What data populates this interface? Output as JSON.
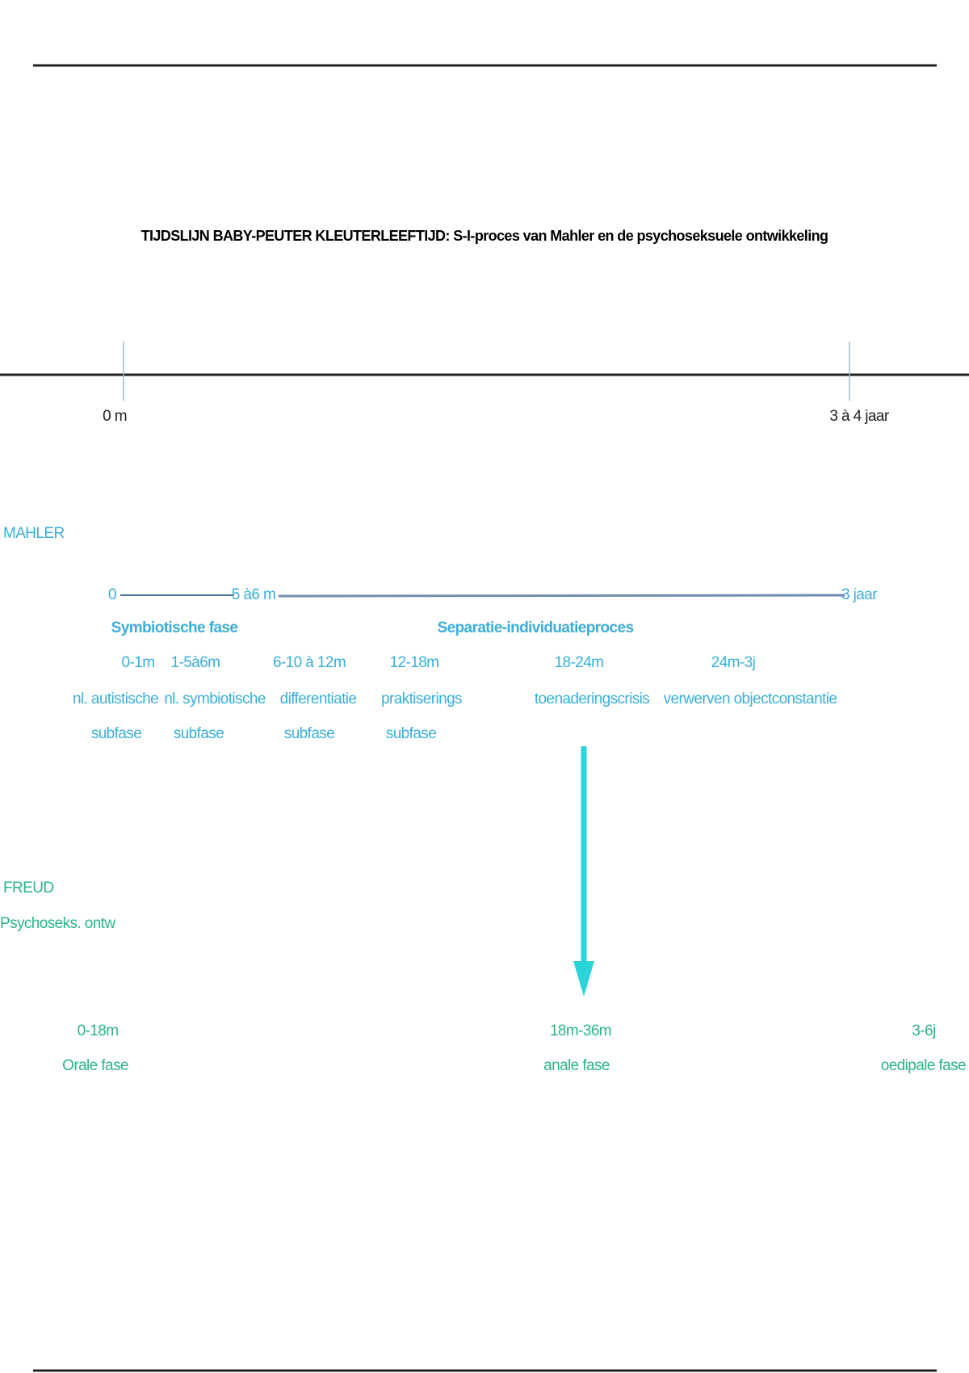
{
  "title": "TIJDSLIJN BABY-PEUTER KLEUTERLEEFTIJD: S-I-proces van Mahler en de psychoseksuele ontwikkeling",
  "timeline": {
    "start": "0 m",
    "end": "3 à 4 jaar"
  },
  "mahler": {
    "label": "MAHLER",
    "line": {
      "start": "0",
      "mid": "5 à6 m",
      "end": "3 jaar"
    },
    "phases": [
      "Symbiotische fase",
      "Separatie-individuatieproces"
    ],
    "subphases": [
      {
        "age": "0-1m",
        "lines": [
          "nl. autistische",
          "subfase"
        ]
      },
      {
        "age": "1-5à6m",
        "lines": [
          "nl. symbiotische",
          "subfase"
        ]
      },
      {
        "age": "6-10 à 12m",
        "lines": [
          "differentiatie",
          "subfase"
        ]
      },
      {
        "age": "12-18m",
        "lines": [
          "praktiserings",
          "subfase"
        ]
      },
      {
        "age": "18-24m",
        "lines": [
          "toenaderingscrisis"
        ]
      },
      {
        "age": "24m-3j",
        "lines": [
          "verwerven objectconstantie"
        ]
      }
    ]
  },
  "freud": {
    "label": "FREUD",
    "sublabel": "Psychoseks. ontw",
    "phases": [
      {
        "age": "0-18m",
        "name": "Orale fase"
      },
      {
        "age": "18m-36m",
        "name": "anale fase"
      },
      {
        "age": "3-6j",
        "name": "oedipale fase"
      }
    ]
  }
}
